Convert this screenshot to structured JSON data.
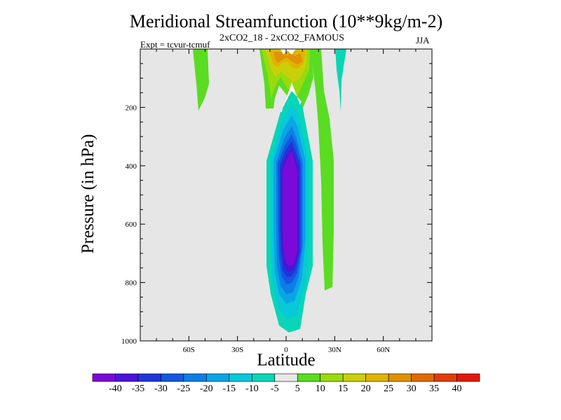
{
  "chart_data": {
    "type": "heatmap",
    "title": "Meridional Streamfunction (10**9kg/m-2)",
    "subtitle": "2xCO2_18 - 2xCO2_FAMOUS",
    "expt_label": "Expt = tcvur-tcmuf",
    "season_label": "JJA",
    "xlabel": "Latitude",
    "ylabel": "Pressure (in hPa)",
    "xlim": [
      -90,
      90
    ],
    "ylim": [
      0,
      1000
    ],
    "y_reversed": true,
    "x_ticks": [
      {
        "value": -60,
        "label": "60S"
      },
      {
        "value": -30,
        "label": "30S"
      },
      {
        "value": 0,
        "label": "0"
      },
      {
        "value": 30,
        "label": "30N"
      },
      {
        "value": 60,
        "label": "60N"
      }
    ],
    "y_ticks": [
      {
        "value": 200,
        "label": "200"
      },
      {
        "value": 400,
        "label": "400"
      },
      {
        "value": 600,
        "label": "600"
      },
      {
        "value": 800,
        "label": "800"
      },
      {
        "value": 1000,
        "label": "1000"
      }
    ],
    "background_color": "#e6e6e6",
    "contour_levels": [
      -40,
      -35,
      -30,
      -25,
      -20,
      -15,
      -10,
      -5,
      5,
      10,
      15,
      20,
      25,
      30,
      35,
      40
    ],
    "colorbar_colors": [
      "#7a0ad8",
      "#4a14d8",
      "#2035d8",
      "#1457e0",
      "#0d7ee6",
      "#0aa5e6",
      "#07c9d8",
      "#08d6b6",
      "#e8e8e8",
      "#5adc22",
      "#9ada0e",
      "#c9d00a",
      "#e0b400",
      "#e09200",
      "#e06a00",
      "#e03c06",
      "#e01a0a"
    ],
    "colorbar_labels": [
      "-40",
      "-35",
      "-30",
      "-25",
      "-20",
      "-15",
      "-10",
      "-5",
      "5",
      "10",
      "15",
      "20",
      "25",
      "30",
      "35",
      "40"
    ],
    "features": [
      {
        "name": "southern-hadley-negative-cell",
        "min_value": -40,
        "lat_range": [
          -12,
          12
        ],
        "pressure_range": [
          140,
          975
        ]
      },
      {
        "name": "upper-positive-center",
        "max_value": 25,
        "lat_range": [
          -14,
          20
        ],
        "pressure_range": [
          0,
          190
        ]
      },
      {
        "name": "positive-band-30N",
        "max_value": 10,
        "lat_range": [
          18,
          28
        ],
        "pressure_range": [
          0,
          830
        ]
      },
      {
        "name": "positive-band-50S",
        "max_value": 10,
        "lat_range": [
          -54,
          -46
        ],
        "pressure_range": [
          0,
          210
        ]
      },
      {
        "name": "negative-band-33N",
        "min_value": -5,
        "lat_range": [
          29,
          35
        ],
        "pressure_range": [
          0,
          220
        ]
      }
    ]
  }
}
